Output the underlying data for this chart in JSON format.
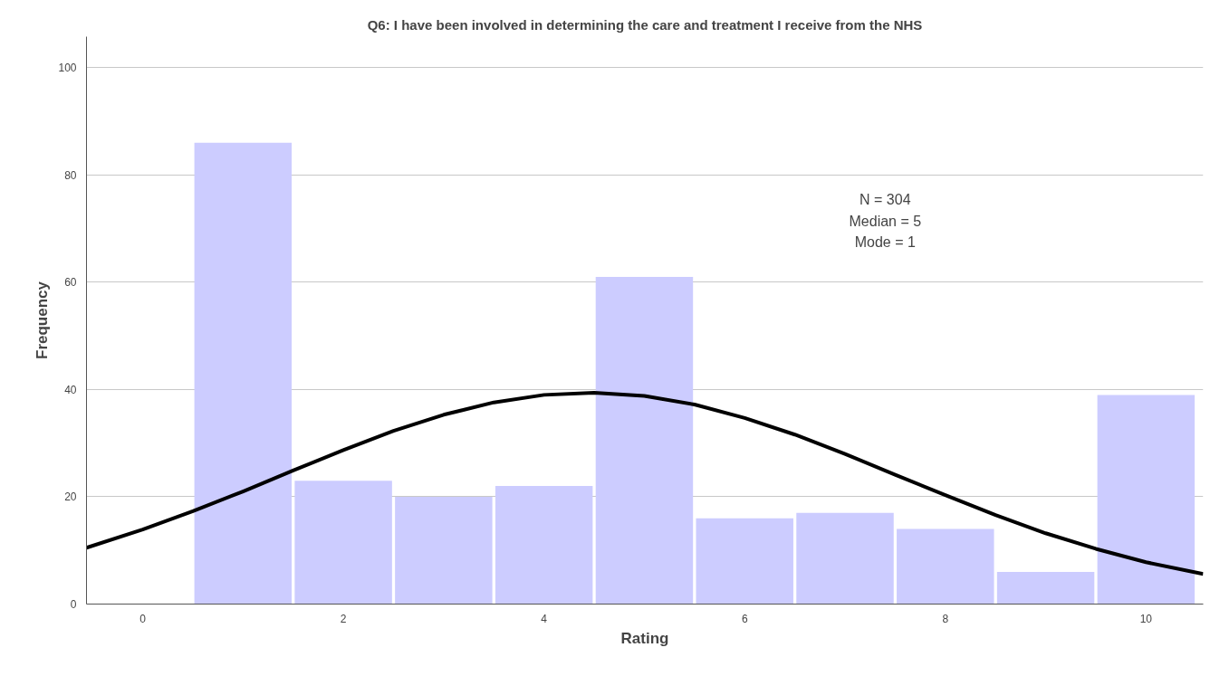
{
  "chart_data": {
    "type": "histogram",
    "title": "Q6: I have been involved in determining the care and treatment I receive from the NHS",
    "xlabel": "Rating",
    "ylabel": "Frequency",
    "bins": [
      -0.5,
      0.5,
      1.5,
      2.5,
      3.5,
      4.5,
      5.5,
      6.5,
      7.5,
      8.5,
      9.5,
      10.5
    ],
    "values": [
      0,
      86,
      23,
      20,
      22,
      61,
      16,
      17,
      14,
      6,
      39
    ],
    "color": "#ccccff",
    "series": [
      {
        "type": "line",
        "color": "#000000",
        "x": [
          -0.56,
          0,
          0.5,
          1,
          1.5,
          2,
          2.5,
          3,
          3.5,
          4,
          4.5,
          5,
          5.5,
          6,
          6.5,
          7,
          7.5,
          8,
          8.5,
          9,
          9.5,
          10,
          10.57
        ],
        "values": [
          10.5,
          13.9,
          17.3,
          21.0,
          24.9,
          28.7,
          32.3,
          35.3,
          37.6,
          39.0,
          39.4,
          38.8,
          37.2,
          34.7,
          31.6,
          28.0,
          24.1,
          20.3,
          16.6,
          13.2,
          10.3,
          7.8,
          5.6
        ]
      }
    ],
    "annotations": [
      "N = 304",
      "Median = 5",
      "Mode = 1"
    ],
    "xlim": [
      -0.56,
      10.57
    ],
    "ylim": [
      0,
      105.8
    ],
    "xticks": [
      0,
      2,
      4,
      6,
      8,
      10
    ],
    "yticks": [
      0,
      20,
      40,
      60,
      80,
      100
    ],
    "grid": "y",
    "line_style": "solid",
    "marker": "none"
  }
}
